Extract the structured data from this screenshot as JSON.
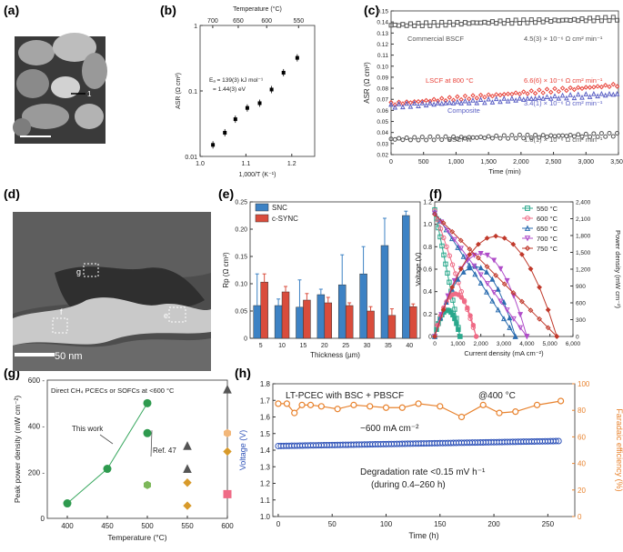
{
  "panel_letters": [
    "(a)",
    "(b)",
    "(c)",
    "(d)",
    "(e)",
    "(f)",
    "(g)",
    "(h)"
  ],
  "images": {
    "a": {
      "kind": "sem-micrograph",
      "label": "1"
    },
    "d": {
      "kind": "tem-micrograph",
      "scale_bar": "50 nm",
      "box_labels": [
        "g",
        "f",
        "e"
      ]
    }
  },
  "chart_data": [
    {
      "panel": "b",
      "type": "scatter",
      "xlabel": "1,000/T (K⁻¹)",
      "ylabel": "ASR (Ω cm²)",
      "top_axis_label": "Temperature (°C)",
      "top_ticks": [
        700,
        650,
        600,
        550
      ],
      "xlim": [
        1.0,
        1.25
      ],
      "ylim": [
        0.01,
        1
      ],
      "ylog": true,
      "x_ticks": [
        "1.0",
        "1.1",
        "1.2"
      ],
      "y_ticks": [
        "0.01",
        "0.1",
        "1"
      ],
      "annotation": [
        "Eₐ = 139(3) kJ mol⁻¹",
        "= 1.44(3) eV"
      ],
      "x": [
        1.028,
        1.054,
        1.077,
        1.103,
        1.13,
        1.156,
        1.182,
        1.212
      ],
      "y": [
        0.015,
        0.023,
        0.037,
        0.055,
        0.065,
        0.105,
        0.19,
        0.32
      ]
    },
    {
      "panel": "c",
      "type": "scatter",
      "xlabel": "Time (min)",
      "ylabel": "ASR (Ω cm²)",
      "xlim": [
        0,
        3500
      ],
      "ylim": [
        0.02,
        0.15
      ],
      "x_ticks": [
        "0",
        "500",
        "1,000",
        "1,500",
        "2,000",
        "2,500",
        "3,000",
        "3,500"
      ],
      "y_ticks": [
        "0.02",
        "0.03",
        "0.04",
        "0.05",
        "0.06",
        "0.07",
        "0.08",
        "0.09",
        "0.10",
        "0.11",
        "0.12",
        "0.13",
        "0.14",
        "0.15"
      ],
      "series": [
        {
          "name": "Commercial BSCF",
          "rate": "4.5(3) × 10⁻⁶ Ω cm² min⁻¹",
          "color": "#555555",
          "marker": "square",
          "start": 0.137,
          "end": 0.143
        },
        {
          "name": "LSCF at 800 °C",
          "rate": "6.6(6) × 10⁻⁶ Ω cm² min⁻¹",
          "color": "#e8433a",
          "marker": "diamond",
          "start": 0.066,
          "end": 0.083
        },
        {
          "name": "Composite",
          "rate": "3.4(1) × 10⁻⁶ Ω cm² min⁻¹",
          "color": "#5a5fc4",
          "marker": "triangle",
          "start": 0.064,
          "end": 0.075
        },
        {
          "name": "BSCFW",
          "rate": "1.6(1) × 10⁻⁶ Ω cm² min⁻¹",
          "color": "#555555",
          "marker": "circle",
          "start": 0.034,
          "end": 0.038
        }
      ]
    },
    {
      "panel": "e",
      "type": "bar",
      "xlabel": "Thickness (µm)",
      "ylabel": "Rp (Ω cm²)",
      "ylim": [
        0,
        0.25
      ],
      "y_ticks": [
        "0",
        "0.05",
        "0.10",
        "0.15",
        "0.20",
        "0.25"
      ],
      "categories": [
        "5",
        "10",
        "15",
        "20",
        "25",
        "30",
        "35",
        "40"
      ],
      "series": [
        {
          "name": "SNC",
          "color": "#3d82c4",
          "values": [
            0.06,
            0.06,
            0.057,
            0.08,
            0.098,
            0.118,
            0.17,
            0.225
          ],
          "errors": [
            0.058,
            0.012,
            0.05,
            0.01,
            0.055,
            0.05,
            0.05,
            0.008
          ]
        },
        {
          "name": "c-SYNC",
          "color": "#d94c3c",
          "values": [
            0.103,
            0.085,
            0.07,
            0.065,
            0.06,
            0.05,
            0.042,
            0.058
          ],
          "errors": [
            0.015,
            0.01,
            0.012,
            0.01,
            0.005,
            0.008,
            0.012,
            0.005
          ]
        }
      ]
    },
    {
      "panel": "f",
      "type": "line",
      "xlabel": "Current density (mA cm⁻²)",
      "ylabel": "Voltage (V)",
      "y2label": "Power density (mW cm⁻²)",
      "xlim": [
        0,
        6000
      ],
      "ylim": [
        0,
        1.2
      ],
      "y2lim": [
        0,
        2400
      ],
      "x_ticks": [
        "0",
        "1,000",
        "2,000",
        "3,000",
        "4,000",
        "5,000",
        "6,000"
      ],
      "y_ticks": [
        "0",
        "0.2",
        "0.4",
        "0.6",
        "0.8",
        "1.0",
        "1.2"
      ],
      "y2_ticks": [
        "0",
        "300",
        "600",
        "900",
        "1,200",
        "1,500",
        "1,800",
        "2,100",
        "2,400"
      ],
      "legend_position": "top-right",
      "series": [
        {
          "name": "550 °C",
          "color": "#2aa88c",
          "marker": "square",
          "ocv": 1.13,
          "jmax": 1100,
          "pmax": 470
        },
        {
          "name": "600 °C",
          "color": "#ef6b86",
          "marker": "circle",
          "ocv": 1.12,
          "jmax": 1800,
          "pmax": 760
        },
        {
          "name": "650 °C",
          "color": "#2b6db0",
          "marker": "triangle",
          "ocv": 1.11,
          "jmax": 3500,
          "pmax": 1250
        },
        {
          "name": "700 °C",
          "color": "#b04dc9",
          "marker": "triangle-down",
          "ocv": 1.1,
          "jmax": 4000,
          "pmax": 1480
        },
        {
          "name": "750 °C",
          "color": "#c0392b",
          "marker": "diamond",
          "ocv": 1.09,
          "jmax": 5300,
          "pmax": 1790
        }
      ]
    },
    {
      "panel": "g",
      "type": "scatter",
      "xlabel": "Temperature (°C)",
      "ylabel": "Peak power density (mW cm⁻²)",
      "title": "Direct CH₄ PCECs or SOFCs at <600 °C",
      "xlim": [
        375,
        600
      ],
      "ylim": [
        0,
        600
      ],
      "x_ticks": [
        "400",
        "450",
        "500",
        "550",
        "600"
      ],
      "y_ticks": [
        "0",
        "200 -",
        "400 -",
        "600 -"
      ],
      "annotations": [
        "This work",
        "Ref. 47"
      ],
      "this_work": {
        "x": [
          400,
          450,
          500
        ],
        "y": [
          65,
          215,
          500
        ]
      },
      "ref47": {
        "x": [
          500
        ],
        "y": [
          370
        ]
      },
      "others": [
        {
          "x": 550,
          "y": 315,
          "marker": "triangle",
          "color": "#555555"
        },
        {
          "x": 550,
          "y": 215,
          "marker": "triangle",
          "color": "#555555"
        },
        {
          "x": 550,
          "y": 155,
          "marker": "diamond",
          "color": "#d89a2a"
        },
        {
          "x": 550,
          "y": 55,
          "marker": "diamond",
          "color": "#d89a2a"
        },
        {
          "x": 500,
          "y": 145,
          "marker": "hexagon",
          "color": "#7db85a"
        },
        {
          "x": 600,
          "y": 560,
          "marker": "triangle",
          "color": "#555555"
        },
        {
          "x": 600,
          "y": 370,
          "marker": "hexagon",
          "color": "#f2b77a"
        },
        {
          "x": 600,
          "y": 290,
          "marker": "diamond",
          "color": "#d89a2a"
        },
        {
          "x": 600,
          "y": 105,
          "marker": "square",
          "color": "#ef6b86"
        }
      ]
    },
    {
      "panel": "h",
      "type": "line",
      "xlabel": "Time (h)",
      "ylabel": "Voltage (V)",
      "y2label": "Faradaic efficiency (%)",
      "xlim": [
        -5,
        275
      ],
      "ylim": [
        1.0,
        1.8
      ],
      "y2lim": [
        0,
        100
      ],
      "x_ticks": [
        "0",
        "50",
        "100",
        "150",
        "200",
        "250"
      ],
      "y_ticks": [
        "1.0",
        "1.1",
        "1.2",
        "1.3",
        "1.4",
        "1.5",
        "1.6",
        "1.7",
        "1.8"
      ],
      "y2_ticks": [
        "0",
        "20",
        "40",
        "60",
        "80",
        "100"
      ],
      "annotations": [
        "LT-PCEC with BSC + PBSCF",
        "@400 °C",
        "−600 mA cm⁻²",
        "Degradation rate <0.15 mV h⁻¹",
        "(during 0.4–260 h)"
      ],
      "voltage": {
        "start": 1.425,
        "end": 1.455
      },
      "faradaic": {
        "x": [
          0,
          8,
          15,
          22,
          30,
          40,
          55,
          70,
          85,
          100,
          115,
          130,
          150,
          170,
          190,
          205,
          220,
          240,
          262
        ],
        "y": [
          85,
          85,
          78,
          84,
          84,
          83,
          81,
          84,
          83,
          82,
          82,
          85,
          83,
          75,
          84,
          78,
          79,
          84,
          87
        ]
      }
    }
  ]
}
